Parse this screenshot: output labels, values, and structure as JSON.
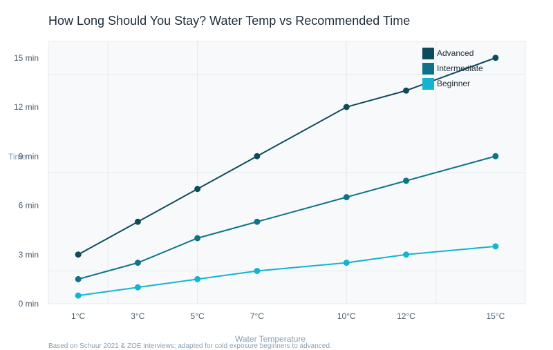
{
  "chart_data": {
    "type": "line",
    "title": "How Long Should You Stay? Water Temp vs Recommended Time",
    "xlabel": "Water Temperature",
    "ylabel": "Time",
    "x": [
      1,
      3,
      5,
      7,
      10,
      12,
      15
    ],
    "x_tick_labels": [
      "1°C",
      "3°C",
      "5°C",
      "7°C",
      "10°C",
      "12°C",
      "15°C"
    ],
    "y_ticks": [
      0,
      3,
      6,
      9,
      12,
      15
    ],
    "y_tick_labels": [
      "0 min",
      "3 min",
      "6 min",
      "9 min",
      "12 min",
      "15 min"
    ],
    "xlim": [
      0,
      16
    ],
    "ylim": [
      0,
      16
    ],
    "grid": true,
    "legend_position": "top-right",
    "series": [
      {
        "name": "Advanced",
        "color": "#0d4a5c",
        "values": [
          3,
          5,
          7,
          9,
          12,
          13,
          15
        ]
      },
      {
        "name": "Intermediate",
        "color": "#0e7389",
        "values": [
          1.5,
          2.5,
          4,
          5,
          6.5,
          7.5,
          9
        ]
      },
      {
        "name": "Beginner",
        "color": "#13b4d0",
        "values": [
          0.5,
          1,
          1.5,
          2,
          2.5,
          3,
          3.5
        ]
      }
    ],
    "footnote": "Based on Schuur 2021 & ZOE interviews; adapted for cold exposure beginners to advanced.",
    "plot_background": "#f7f9fb",
    "grid_color": "#e3ebf0"
  }
}
